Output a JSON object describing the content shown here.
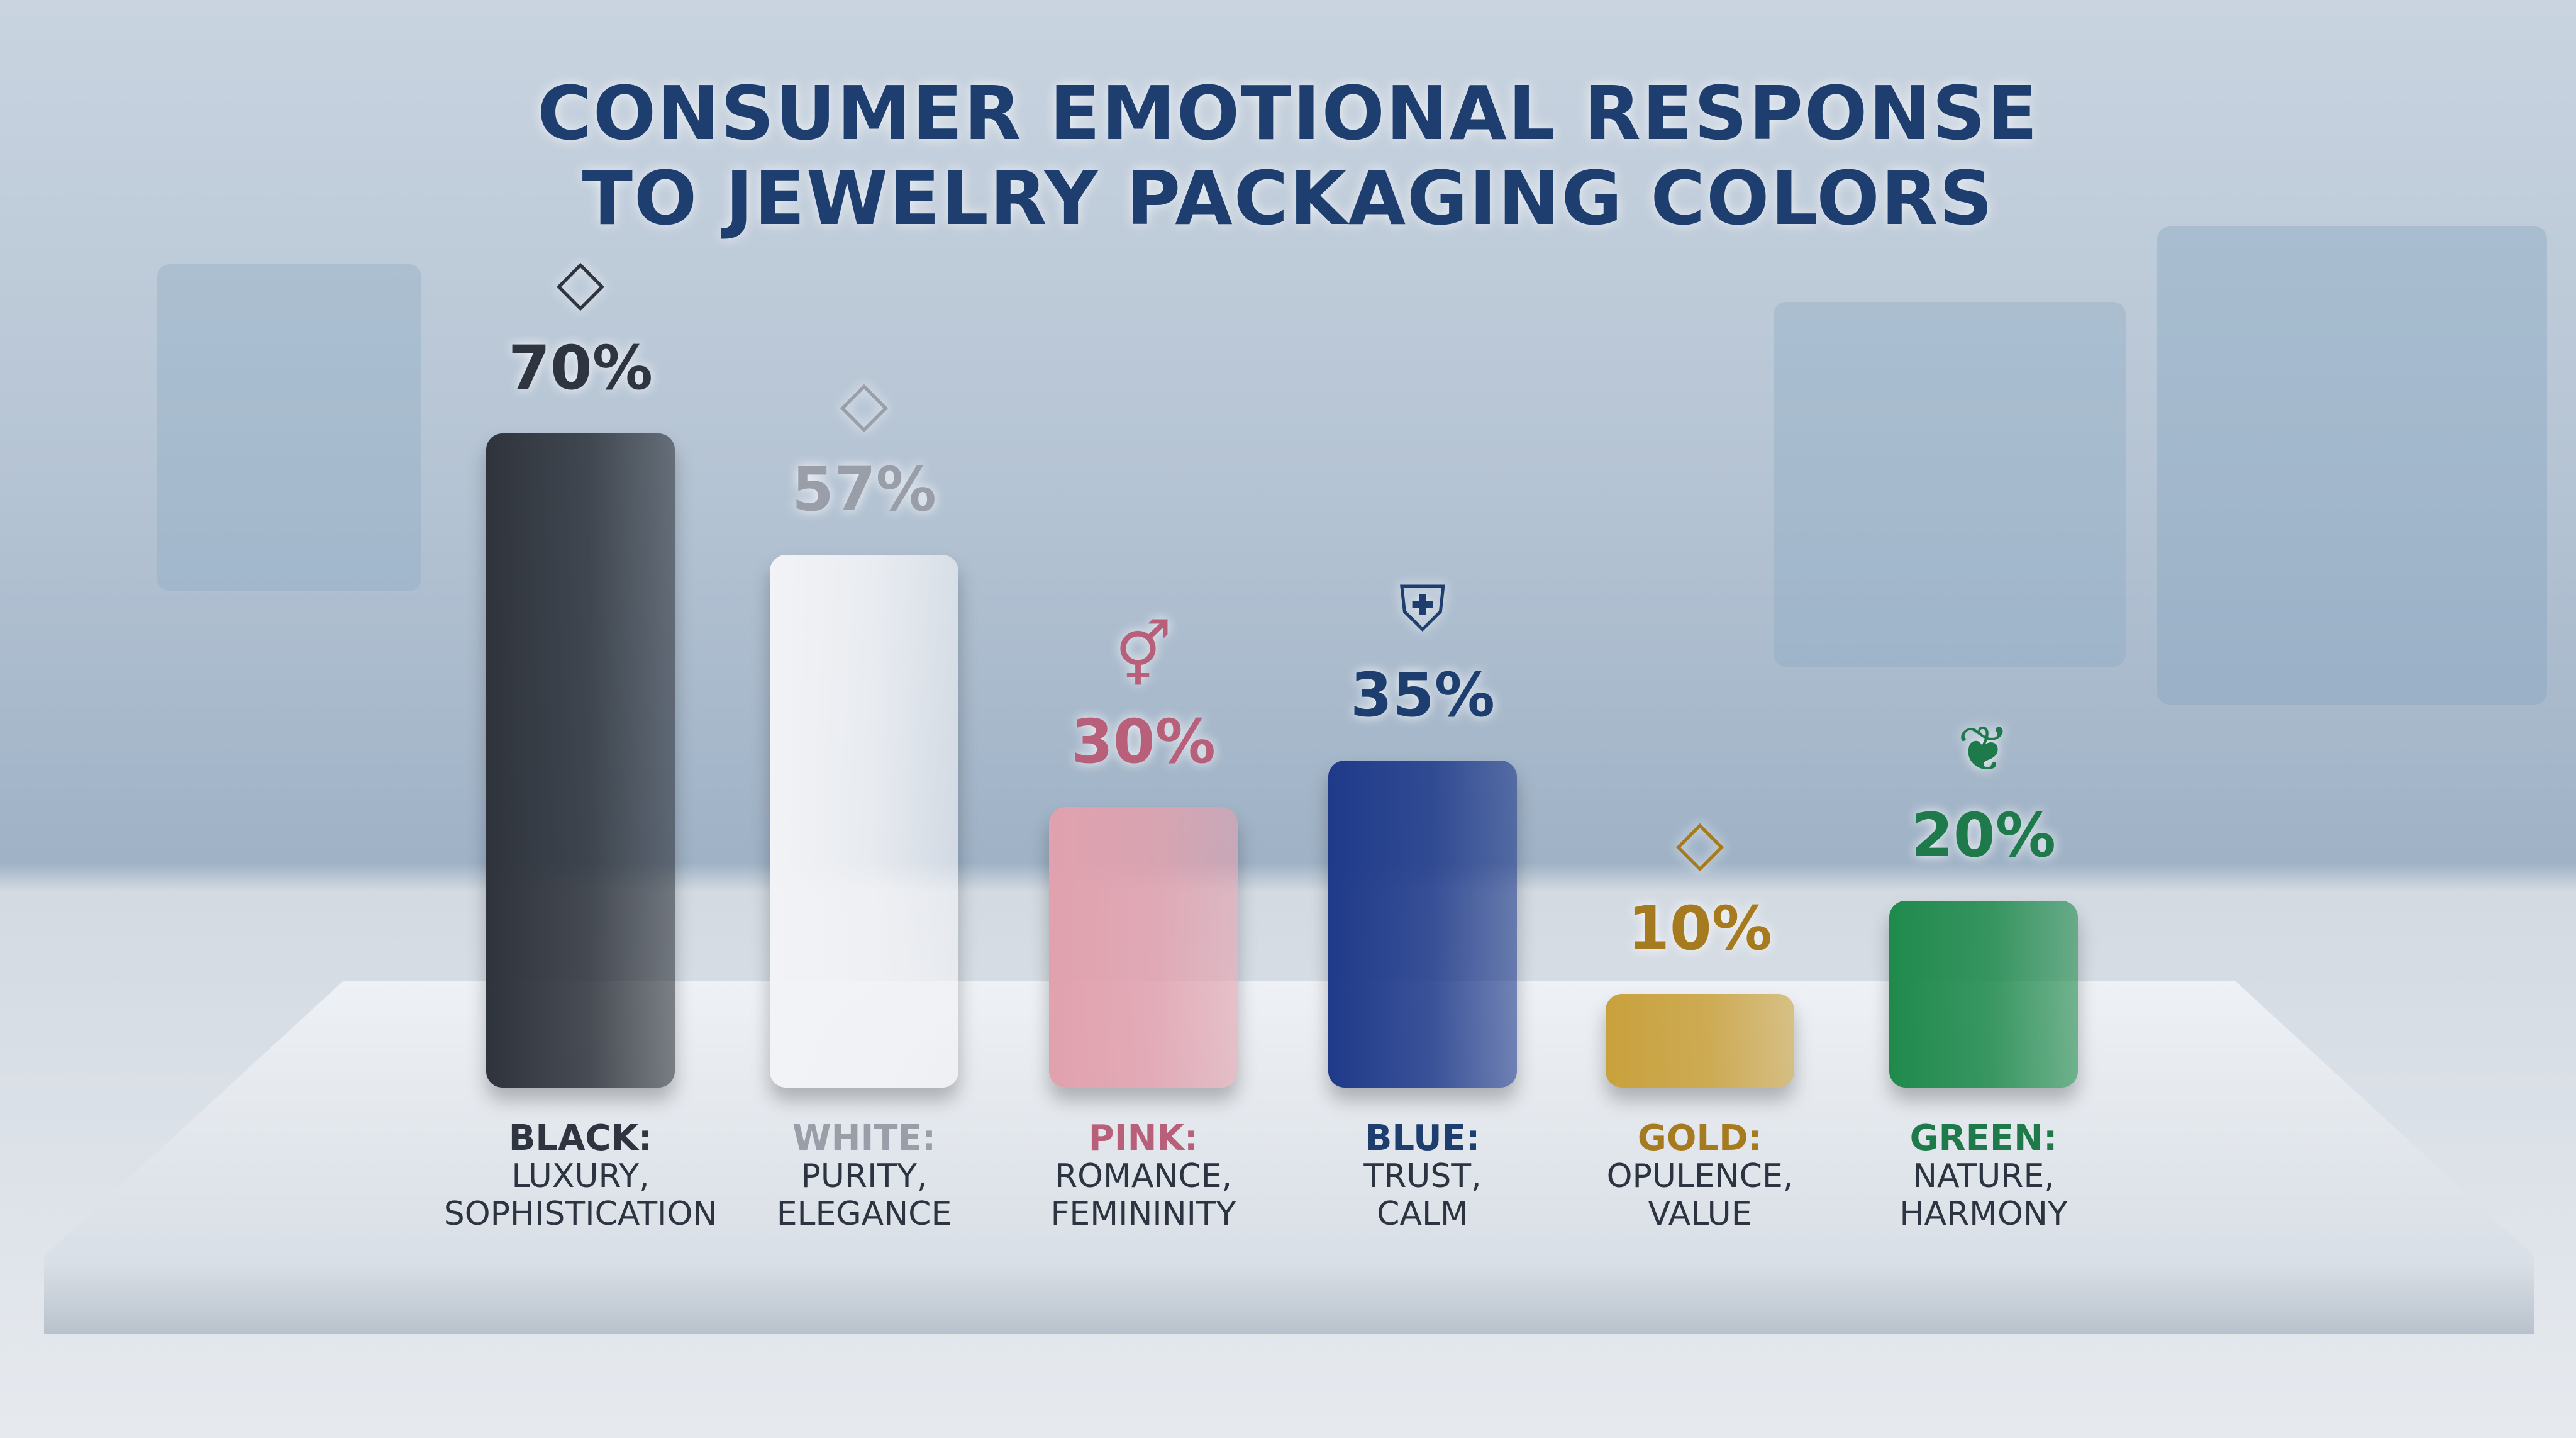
{
  "chart_data": {
    "type": "bar",
    "title": [
      "CONSUMER EMOTIONAL RESPONSE",
      "TO JEWELRY PACKAGING COLORS"
    ],
    "unit": "%",
    "ylim": [
      0,
      70
    ],
    "categories": [
      "BLACK",
      "WHITE",
      "PINK",
      "BLUE",
      "GOLD",
      "GREEN"
    ],
    "values": [
      70,
      57,
      30,
      35,
      10,
      20
    ],
    "value_labels": [
      "70%",
      "57%",
      "30%",
      "35%",
      "10%",
      "20%"
    ],
    "headings": [
      "BLACK:",
      "WHITE:",
      "PINK:",
      "BLUE:",
      "GOLD:",
      "GREEN:"
    ],
    "descriptions": [
      [
        "LUXURY,",
        "SOPHISTICATION"
      ],
      [
        "PURITY,",
        "ELEGANCE"
      ],
      [
        "ROMANCE,",
        "FEMININITY"
      ],
      [
        "TRUST,",
        "CALM"
      ],
      [
        "OPULENCE,",
        "VALUE"
      ],
      [
        "NATURE,",
        "HARMONY"
      ]
    ],
    "icons": [
      "diamond-icon",
      "diamond-icon",
      "gender-icon",
      "shield-check-icon",
      "diamond-icon",
      "plant-hand-icon"
    ],
    "colors": [
      "#2f343c",
      "#f2f3f6",
      "#e1a1ae",
      "#1f3a8a",
      "#c9a13c",
      "#1f8a4c"
    ],
    "label_colors": [
      "#2f3540",
      "#9a9ea8",
      "#b8607a",
      "#1d3e6e",
      "#a67a1e",
      "#1e7a4a"
    ]
  }
}
